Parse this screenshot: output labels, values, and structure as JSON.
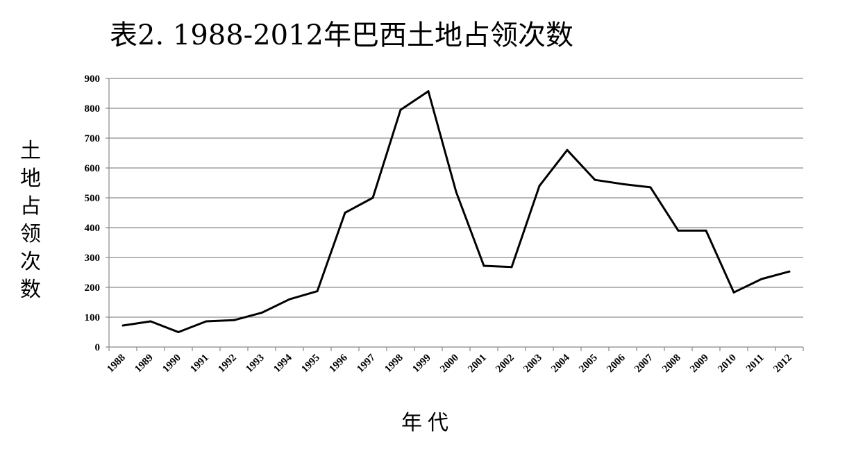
{
  "chart_data": {
    "type": "line",
    "title": "表2. 1988-2012年巴西土地占领次数",
    "xlabel": "年代",
    "ylabel": "土地占领次数",
    "ylim": [
      0,
      900
    ],
    "yticks": [
      "0",
      "100",
      "200",
      "300",
      "400",
      "500",
      "600",
      "700",
      "800",
      "900"
    ],
    "grid": true,
    "categories": [
      "1988",
      "1989",
      "1990",
      "1991",
      "1992",
      "1993",
      "1994",
      "1995",
      "1996",
      "1997",
      "1998",
      "1999",
      "2000",
      "2001",
      "2002",
      "2003",
      "2004",
      "2005",
      "2006",
      "2007",
      "2008",
      "2009",
      "2010",
      "2011",
      "2012"
    ],
    "series": [
      {
        "values": [
          72,
          86,
          50,
          86,
          90,
          115,
          160,
          187,
          450,
          500,
          795,
          857,
          520,
          272,
          268,
          540,
          660,
          560,
          546,
          535,
          390,
          390,
          183,
          228,
          253
        ],
        "color": "#000000"
      }
    ]
  }
}
